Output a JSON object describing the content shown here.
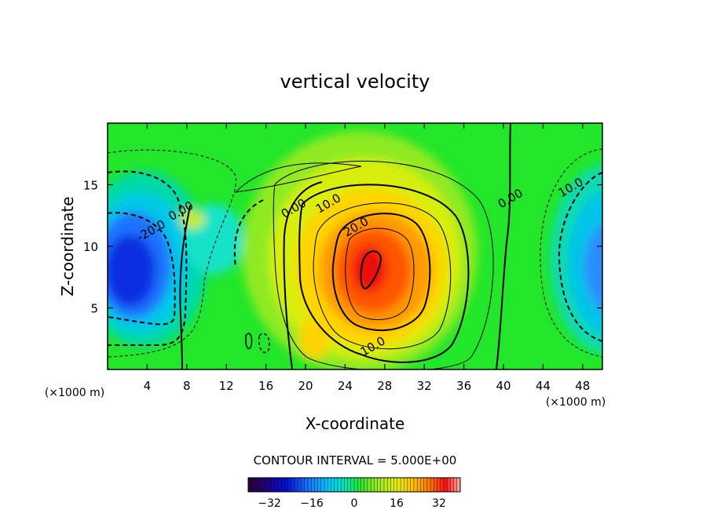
{
  "chart_data": {
    "type": "heatmap",
    "title": "vertical velocity",
    "xlabel": "X-coordinate",
    "ylabel": "Z-coordinate",
    "x_units": "(×1000 m)",
    "y_units": "(×1000 m)",
    "xlim": [
      0,
      50
    ],
    "ylim": [
      0,
      20
    ],
    "x_ticks": [
      4,
      8,
      12,
      16,
      20,
      24,
      28,
      32,
      36,
      40,
      44,
      48
    ],
    "y_ticks": [
      5,
      10,
      15
    ],
    "contour_interval_text": "CONTOUR INTERVAL = 5.000E+00",
    "contour_labels": [
      {
        "text": "0.00",
        "x": 19.0,
        "y": 12.8
      },
      {
        "text": "10.0",
        "x": 22.5,
        "y": 13.2
      },
      {
        "text": "20.0",
        "x": 25.3,
        "y": 11.3
      },
      {
        "text": "0.00",
        "x": 40.9,
        "y": 13.6
      },
      {
        "text": "10.0",
        "x": 47.0,
        "y": 14.5
      },
      {
        "text": "10.0",
        "x": 27.0,
        "y": 1.6
      },
      {
        "text": "-20.0",
        "x": 4.6,
        "y": 11.0
      },
      {
        "text": "0.00",
        "x": 7.6,
        "y": 12.6
      }
    ],
    "field_centers": [
      {
        "x": 26.5,
        "y": 8.2,
        "value": 32
      },
      {
        "x": 3.8,
        "y": 8.0,
        "value": -30
      },
      {
        "x": 49.5,
        "y": 8.0,
        "value": -17
      },
      {
        "x": 21.0,
        "y": 2.6,
        "value": 13
      }
    ],
    "colorbar": {
      "min": -40,
      "max": 40,
      "ticks": [
        -32,
        -16,
        0,
        16,
        32
      ],
      "tick_labels": [
        "−32",
        "−16",
        "0",
        "16",
        "32"
      ]
    }
  }
}
